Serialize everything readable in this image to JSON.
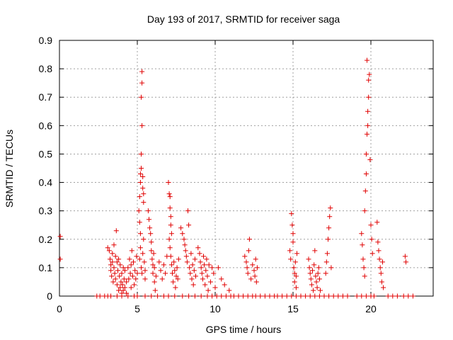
{
  "chart_data": {
    "type": "scatter",
    "title": "Day 193 of 2017, SRMTID for receiver saga",
    "xlabel": "GPS time / hours",
    "ylabel": "SRMTID / TECUs",
    "xlim": [
      0,
      24
    ],
    "ylim": [
      0,
      0.9
    ],
    "xticks": [
      0,
      5,
      10,
      15,
      20
    ],
    "yticks": [
      0,
      0.1,
      0.2,
      0.3,
      0.4,
      0.5,
      0.6,
      0.7,
      0.8,
      0.9
    ],
    "xtick_labels": [
      "0",
      "5",
      "10",
      "15",
      "20"
    ],
    "ytick_labels": [
      "0",
      "0.1",
      "0.2",
      "0.3",
      "0.4",
      "0.5",
      "0.6",
      "0.7",
      "0.8",
      "0.9"
    ],
    "grid": true,
    "marker": "+",
    "color": "#e00000",
    "series": [
      {
        "name": "SRMTID",
        "points": [
          [
            0.05,
            0.21
          ],
          [
            0.05,
            0.13
          ],
          [
            2.4,
            0
          ],
          [
            2.6,
            0
          ],
          [
            2.9,
            0
          ],
          [
            3.1,
            0
          ],
          [
            3.3,
            0
          ],
          [
            3.7,
            0
          ],
          [
            4.0,
            0
          ],
          [
            4.4,
            0
          ],
          [
            4.8,
            0
          ],
          [
            5.0,
            0
          ],
          [
            5.5,
            0
          ],
          [
            5.9,
            0
          ],
          [
            6.3,
            0
          ],
          [
            6.7,
            0
          ],
          [
            7.0,
            0
          ],
          [
            7.4,
            0
          ],
          [
            7.9,
            0
          ],
          [
            8.3,
            0
          ],
          [
            8.7,
            0
          ],
          [
            9.1,
            0
          ],
          [
            9.5,
            0
          ],
          [
            9.8,
            0
          ],
          [
            10.1,
            0
          ],
          [
            10.4,
            0
          ],
          [
            10.7,
            0
          ],
          [
            11.0,
            0
          ],
          [
            11.2,
            0
          ],
          [
            11.5,
            0
          ],
          [
            11.8,
            0
          ],
          [
            12.1,
            0
          ],
          [
            12.4,
            0
          ],
          [
            12.6,
            0
          ],
          [
            12.9,
            0
          ],
          [
            13.2,
            0
          ],
          [
            13.5,
            0
          ],
          [
            13.8,
            0
          ],
          [
            14.0,
            0
          ],
          [
            14.3,
            0
          ],
          [
            14.6,
            0
          ],
          [
            14.9,
            0
          ],
          [
            15.2,
            0
          ],
          [
            15.5,
            0
          ],
          [
            15.8,
            0
          ],
          [
            16.1,
            0
          ],
          [
            16.4,
            0
          ],
          [
            16.7,
            0
          ],
          [
            17.0,
            0
          ],
          [
            17.3,
            0
          ],
          [
            17.6,
            0
          ],
          [
            17.9,
            0
          ],
          [
            18.2,
            0
          ],
          [
            18.5,
            0
          ],
          [
            19.1,
            0
          ],
          [
            19.4,
            0
          ],
          [
            19.7,
            0
          ],
          [
            20.0,
            0
          ],
          [
            20.2,
            0
          ],
          [
            21.1,
            0
          ],
          [
            21.4,
            0
          ],
          [
            21.7,
            0
          ],
          [
            22.1,
            0
          ],
          [
            22.4,
            0
          ],
          [
            22.7,
            0
          ],
          [
            3.1,
            0.17
          ],
          [
            3.2,
            0.16
          ],
          [
            3.25,
            0.13
          ],
          [
            3.3,
            0.11
          ],
          [
            3.3,
            0.09
          ],
          [
            3.35,
            0.07
          ],
          [
            3.4,
            0.15
          ],
          [
            3.4,
            0.12
          ],
          [
            3.45,
            0.05
          ],
          [
            3.5,
            0.1
          ],
          [
            3.5,
            0.18
          ],
          [
            3.55,
            0.08
          ],
          [
            3.6,
            0.06
          ],
          [
            3.6,
            0.14
          ],
          [
            3.65,
            0.23
          ],
          [
            3.7,
            0.12
          ],
          [
            3.7,
            0.04
          ],
          [
            3.75,
            0.09
          ],
          [
            3.8,
            0.02
          ],
          [
            3.8,
            0.13
          ],
          [
            3.85,
            0.07
          ],
          [
            3.9,
            0.03
          ],
          [
            3.9,
            0.11
          ],
          [
            3.95,
            0.05
          ],
          [
            4.0,
            0.08
          ],
          [
            4.0,
            0.01
          ],
          [
            4.05,
            0.04
          ],
          [
            4.1,
            0.1
          ],
          [
            4.1,
            0.02
          ],
          [
            4.15,
            0.06
          ],
          [
            4.2,
            0.03
          ],
          [
            4.2,
            0.09
          ],
          [
            4.3,
            0.05
          ],
          [
            4.3,
            0.01
          ],
          [
            4.4,
            0.1
          ],
          [
            4.45,
            0.06
          ],
          [
            4.5,
            0.13
          ],
          [
            4.55,
            0.08
          ],
          [
            4.6,
            0.11
          ],
          [
            4.6,
            0.03
          ],
          [
            4.65,
            0.16
          ],
          [
            4.7,
            0.07
          ],
          [
            4.75,
            0.12
          ],
          [
            4.8,
            0.04
          ],
          [
            4.85,
            0.09
          ],
          [
            4.9,
            0.06
          ],
          [
            4.95,
            0.14
          ],
          [
            5.0,
            0.08
          ],
          [
            5.1,
            0.3
          ],
          [
            5.15,
            0.26
          ],
          [
            5.15,
            0.35
          ],
          [
            5.2,
            0.4
          ],
          [
            5.2,
            0.43
          ],
          [
            5.25,
            0.45
          ],
          [
            5.25,
            0.5
          ],
          [
            5.25,
            0.7
          ],
          [
            5.3,
            0.6
          ],
          [
            5.3,
            0.79
          ],
          [
            5.3,
            0.75
          ],
          [
            5.35,
            0.42
          ],
          [
            5.35,
            0.38
          ],
          [
            5.4,
            0.36
          ],
          [
            5.4,
            0.33
          ],
          [
            5.2,
            0.22
          ],
          [
            5.2,
            0.17
          ],
          [
            5.15,
            0.13
          ],
          [
            5.25,
            0.1
          ],
          [
            5.3,
            0.08
          ],
          [
            5.35,
            0.15
          ],
          [
            5.4,
            0.2
          ],
          [
            5.45,
            0.12
          ],
          [
            5.5,
            0.06
          ],
          [
            5.5,
            0.09
          ],
          [
            5.7,
            0.3
          ],
          [
            5.75,
            0.27
          ],
          [
            5.8,
            0.24
          ],
          [
            5.85,
            0.22
          ],
          [
            5.9,
            0.19
          ],
          [
            5.9,
            0.16
          ],
          [
            5.95,
            0.13
          ],
          [
            6.0,
            0.11
          ],
          [
            6.0,
            0.08
          ],
          [
            6.05,
            0.15
          ],
          [
            6.1,
            0.05
          ],
          [
            6.1,
            0.1
          ],
          [
            6.15,
            0.02
          ],
          [
            6.2,
            0.07
          ],
          [
            6.4,
            0.12
          ],
          [
            6.5,
            0.09
          ],
          [
            6.6,
            0.06
          ],
          [
            6.7,
            0.11
          ],
          [
            6.8,
            0.08
          ],
          [
            6.9,
            0.14
          ],
          [
            7.0,
            0.4
          ],
          [
            7.05,
            0.36
          ],
          [
            7.1,
            0.35
          ],
          [
            7.1,
            0.31
          ],
          [
            7.15,
            0.28
          ],
          [
            7.15,
            0.25
          ],
          [
            7.2,
            0.22
          ],
          [
            7.05,
            0.2
          ],
          [
            7.1,
            0.17
          ],
          [
            7.15,
            0.14
          ],
          [
            7.2,
            0.11
          ],
          [
            7.25,
            0.08
          ],
          [
            7.3,
            0.05
          ],
          [
            7.35,
            0.12
          ],
          [
            7.4,
            0.09
          ],
          [
            7.45,
            0.03
          ],
          [
            7.5,
            0.07
          ],
          [
            7.55,
            0.1
          ],
          [
            7.6,
            0.06
          ],
          [
            7.65,
            0.13
          ],
          [
            7.8,
            0.24
          ],
          [
            7.9,
            0.22
          ],
          [
            8.0,
            0.2
          ],
          [
            8.05,
            0.18
          ],
          [
            8.1,
            0.16
          ],
          [
            8.15,
            0.14
          ],
          [
            8.2,
            0.12
          ],
          [
            8.25,
            0.3
          ],
          [
            8.3,
            0.25
          ],
          [
            8.35,
            0.1
          ],
          [
            8.4,
            0.08
          ],
          [
            8.45,
            0.15
          ],
          [
            8.5,
            0.06
          ],
          [
            8.55,
            0.11
          ],
          [
            8.6,
            0.04
          ],
          [
            8.65,
            0.09
          ],
          [
            8.7,
            0.13
          ],
          [
            8.75,
            0.07
          ],
          [
            8.9,
            0.17
          ],
          [
            9.0,
            0.15
          ],
          [
            9.05,
            0.12
          ],
          [
            9.1,
            0.1
          ],
          [
            9.15,
            0.08
          ],
          [
            9.2,
            0.06
          ],
          [
            9.25,
            0.14
          ],
          [
            9.3,
            0.11
          ],
          [
            9.35,
            0.04
          ],
          [
            9.4,
            0.09
          ],
          [
            9.45,
            0.13
          ],
          [
            9.5,
            0.07
          ],
          [
            9.55,
            0.02
          ],
          [
            9.6,
            0.11
          ],
          [
            9.7,
            0.05
          ],
          [
            9.8,
            0.1
          ],
          [
            9.9,
            0.08
          ],
          [
            10.0,
            0.03
          ],
          [
            10.2,
            0.1
          ],
          [
            10.4,
            0.06
          ],
          [
            10.6,
            0.04
          ],
          [
            10.9,
            0.02
          ],
          [
            11.9,
            0.14
          ],
          [
            12.0,
            0.12
          ],
          [
            12.05,
            0.1
          ],
          [
            12.1,
            0.08
          ],
          [
            12.15,
            0.16
          ],
          [
            12.2,
            0.2
          ],
          [
            12.3,
            0.06
          ],
          [
            12.4,
            0.11
          ],
          [
            12.5,
            0.09
          ],
          [
            12.55,
            0.07
          ],
          [
            12.6,
            0.13
          ],
          [
            12.65,
            0.05
          ],
          [
            12.7,
            0.1
          ],
          [
            14.8,
            0.16
          ],
          [
            14.85,
            0.13
          ],
          [
            14.9,
            0.29
          ],
          [
            14.95,
            0.25
          ],
          [
            15.0,
            0.22
          ],
          [
            15.0,
            0.19
          ],
          [
            15.05,
            0.1
          ],
          [
            15.1,
            0.08
          ],
          [
            15.1,
            0.05
          ],
          [
            15.15,
            0.12
          ],
          [
            15.2,
            0.03
          ],
          [
            15.2,
            0.07
          ],
          [
            15.25,
            0.15
          ],
          [
            16.0,
            0.13
          ],
          [
            16.05,
            0.1
          ],
          [
            16.1,
            0.08
          ],
          [
            16.15,
            0.06
          ],
          [
            16.2,
            0.04
          ],
          [
            16.25,
            0.09
          ],
          [
            16.3,
            0.02
          ],
          [
            16.35,
            0.11
          ],
          [
            16.4,
            0.16
          ],
          [
            16.45,
            0.07
          ],
          [
            16.5,
            0.05
          ],
          [
            16.55,
            0.03
          ],
          [
            16.6,
            0.08
          ],
          [
            16.65,
            0.1
          ],
          [
            16.7,
            0.06
          ],
          [
            16.75,
            0.02
          ],
          [
            17.1,
            0.08
          ],
          [
            17.15,
            0.12
          ],
          [
            17.2,
            0.15
          ],
          [
            17.25,
            0.2
          ],
          [
            17.3,
            0.24
          ],
          [
            17.35,
            0.28
          ],
          [
            17.4,
            0.31
          ],
          [
            17.45,
            0.1
          ],
          [
            19.4,
            0.22
          ],
          [
            19.45,
            0.18
          ],
          [
            19.5,
            0.13
          ],
          [
            19.55,
            0.1
          ],
          [
            19.6,
            0.07
          ],
          [
            19.6,
            0.3
          ],
          [
            19.65,
            0.37
          ],
          [
            19.7,
            0.43
          ],
          [
            19.7,
            0.5
          ],
          [
            19.75,
            0.57
          ],
          [
            19.8,
            0.6
          ],
          [
            19.8,
            0.65
          ],
          [
            19.85,
            0.7
          ],
          [
            19.85,
            0.76
          ],
          [
            19.9,
            0.78
          ],
          [
            19.75,
            0.83
          ],
          [
            19.95,
            0.48
          ],
          [
            20.0,
            0.25
          ],
          [
            20.05,
            0.2
          ],
          [
            20.1,
            0.15
          ],
          [
            20.4,
            0.26
          ],
          [
            20.45,
            0.19
          ],
          [
            20.5,
            0.16
          ],
          [
            20.55,
            0.13
          ],
          [
            20.6,
            0.1
          ],
          [
            20.65,
            0.08
          ],
          [
            20.7,
            0.05
          ],
          [
            20.75,
            0.12
          ],
          [
            20.8,
            0.03
          ],
          [
            22.2,
            0.14
          ],
          [
            22.25,
            0.12
          ]
        ]
      }
    ]
  }
}
